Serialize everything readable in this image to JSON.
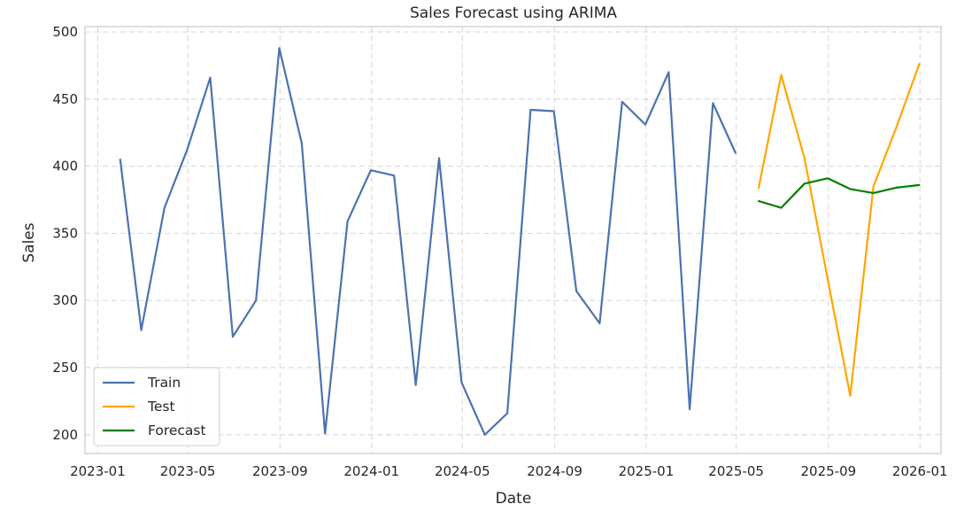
{
  "chart_data": {
    "type": "line",
    "title": "Sales Forecast using ARIMA",
    "xlabel": "Date",
    "ylabel": "Sales",
    "ylim": [
      186,
      504
    ],
    "xlim": [
      "2022-12-15",
      "2026-01-29"
    ],
    "grid": true,
    "legend_position": "lower-left",
    "yticks": [
      200,
      250,
      300,
      350,
      400,
      450,
      500
    ],
    "xticks": [
      {
        "date": "2023-01-01",
        "label": "2023-01"
      },
      {
        "date": "2023-05-01",
        "label": "2023-05"
      },
      {
        "date": "2023-09-01",
        "label": "2023-09"
      },
      {
        "date": "2024-01-01",
        "label": "2024-01"
      },
      {
        "date": "2024-05-01",
        "label": "2024-05"
      },
      {
        "date": "2024-09-01",
        "label": "2024-09"
      },
      {
        "date": "2025-01-01",
        "label": "2025-01"
      },
      {
        "date": "2025-05-01",
        "label": "2025-05"
      },
      {
        "date": "2025-09-01",
        "label": "2025-09"
      },
      {
        "date": "2026-01-01",
        "label": "2026-01"
      }
    ],
    "series": [
      {
        "name": "Train",
        "color": "#4c72b0",
        "x": [
          "2023-01-31",
          "2023-02-28",
          "2023-03-31",
          "2023-04-30",
          "2023-05-31",
          "2023-06-30",
          "2023-07-31",
          "2023-08-31",
          "2023-09-30",
          "2023-10-31",
          "2023-11-30",
          "2023-12-31",
          "2024-01-31",
          "2024-02-29",
          "2024-03-31",
          "2024-04-30",
          "2024-05-31",
          "2024-06-30",
          "2024-07-31",
          "2024-08-31",
          "2024-09-30",
          "2024-10-31",
          "2024-11-30",
          "2024-12-31",
          "2025-01-31",
          "2025-02-28",
          "2025-03-31",
          "2025-04-30"
        ],
        "values": [
          405,
          278,
          369,
          412,
          466,
          273,
          300,
          488,
          417,
          201,
          359,
          397,
          393,
          237,
          406,
          239,
          200,
          216,
          442,
          441,
          307,
          283,
          448,
          431,
          470,
          219,
          447,
          410
        ]
      },
      {
        "name": "Test",
        "color": "#ffa500",
        "x": [
          "2025-05-31",
          "2025-06-30",
          "2025-07-31",
          "2025-08-31",
          "2025-09-30",
          "2025-10-31",
          "2025-11-30",
          "2025-12-31"
        ],
        "values": [
          384,
          468,
          406,
          316,
          229,
          385,
          428,
          476
        ]
      },
      {
        "name": "Forecast",
        "color": "#008000",
        "x": [
          "2025-05-31",
          "2025-06-30",
          "2025-07-31",
          "2025-08-31",
          "2025-09-30",
          "2025-10-31",
          "2025-11-30",
          "2025-12-31"
        ],
        "values": [
          374,
          369,
          387,
          391,
          383,
          380,
          384,
          386
        ]
      }
    ]
  }
}
